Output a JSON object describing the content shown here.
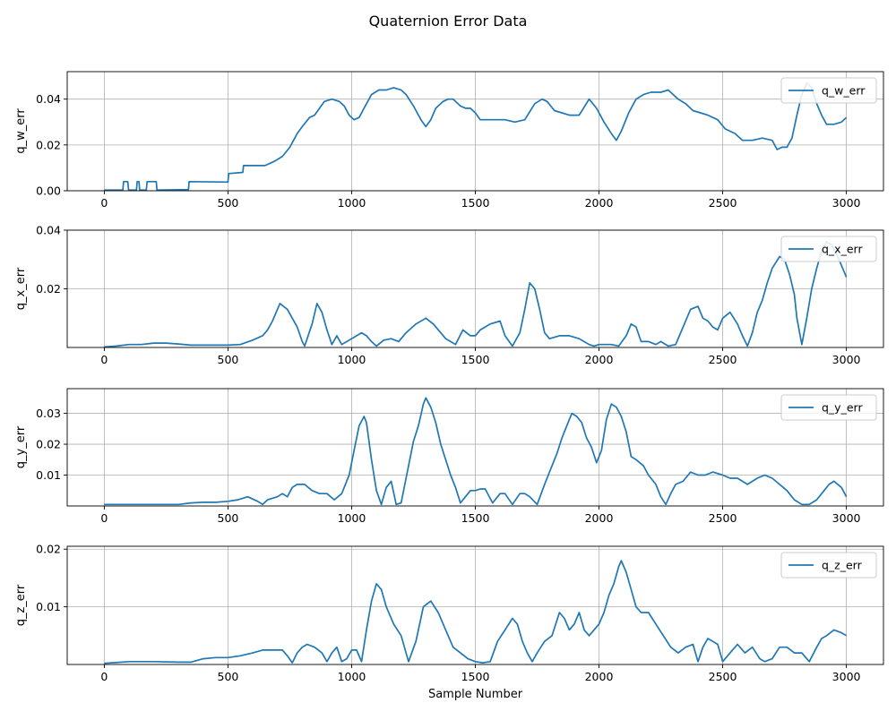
{
  "figure": {
    "title": "Quaternion Error Data",
    "xlabel": "Sample Number",
    "line_color": "#1f77b4",
    "grid_color": "#b0b0b0"
  },
  "chart_data": [
    {
      "type": "line",
      "ylabel": "q_w_err",
      "xlim": [
        -150,
        3150
      ],
      "ylim": [
        0,
        0.052
      ],
      "x_ticks": [
        0,
        500,
        1000,
        1500,
        2000,
        2500,
        3000
      ],
      "y_ticks": [
        0.0,
        0.02,
        0.04
      ],
      "y_tick_labels": [
        "0.00",
        "0.02",
        "0.04"
      ],
      "grid": true,
      "legend": "upper right",
      "series": [
        {
          "name": "q_w_err",
          "x": [
            0,
            75,
            78,
            95,
            98,
            130,
            133,
            140,
            143,
            170,
            173,
            210,
            213,
            340,
            343,
            500,
            503,
            560,
            563,
            650,
            690,
            720,
            750,
            780,
            800,
            830,
            850,
            870,
            890,
            920,
            950,
            970,
            990,
            1010,
            1030,
            1050,
            1080,
            1110,
            1140,
            1170,
            1200,
            1220,
            1250,
            1280,
            1300,
            1320,
            1340,
            1370,
            1390,
            1410,
            1440,
            1460,
            1480,
            1500,
            1520,
            1550,
            1580,
            1620,
            1660,
            1700,
            1740,
            1770,
            1790,
            1820,
            1850,
            1880,
            1920,
            1960,
            1990,
            2020,
            2050,
            2070,
            2090,
            2120,
            2150,
            2180,
            2210,
            2250,
            2280,
            2320,
            2350,
            2380,
            2410,
            2440,
            2480,
            2510,
            2550,
            2580,
            2620,
            2660,
            2700,
            2720,
            2740,
            2760,
            2780,
            2800,
            2820,
            2840,
            2860,
            2880,
            2900,
            2920,
            2950,
            2980,
            3000
          ],
          "y": [
            0.0003,
            0.0003,
            0.004,
            0.004,
            0.0003,
            0.0003,
            0.004,
            0.004,
            0.0003,
            0.0003,
            0.004,
            0.004,
            0.0003,
            0.0005,
            0.004,
            0.0038,
            0.0075,
            0.008,
            0.011,
            0.011,
            0.013,
            0.015,
            0.019,
            0.025,
            0.028,
            0.032,
            0.033,
            0.036,
            0.039,
            0.04,
            0.039,
            0.037,
            0.033,
            0.031,
            0.032,
            0.036,
            0.042,
            0.044,
            0.044,
            0.045,
            0.044,
            0.042,
            0.037,
            0.031,
            0.028,
            0.031,
            0.036,
            0.039,
            0.04,
            0.04,
            0.037,
            0.036,
            0.036,
            0.034,
            0.031,
            0.031,
            0.031,
            0.031,
            0.03,
            0.031,
            0.038,
            0.04,
            0.039,
            0.035,
            0.034,
            0.033,
            0.033,
            0.04,
            0.036,
            0.03,
            0.025,
            0.022,
            0.026,
            0.034,
            0.04,
            0.042,
            0.043,
            0.043,
            0.044,
            0.04,
            0.038,
            0.035,
            0.034,
            0.033,
            0.031,
            0.027,
            0.025,
            0.022,
            0.022,
            0.023,
            0.022,
            0.018,
            0.019,
            0.019,
            0.023,
            0.033,
            0.042,
            0.047,
            0.045,
            0.038,
            0.033,
            0.029,
            0.029,
            0.03,
            0.032
          ]
        }
      ]
    },
    {
      "type": "line",
      "ylabel": "q_x_err",
      "xlim": [
        -150,
        3150
      ],
      "ylim": [
        0,
        0.04
      ],
      "x_ticks": [
        0,
        500,
        1000,
        1500,
        2000,
        2500,
        3000
      ],
      "y_ticks": [
        0.02,
        0.04
      ],
      "y_tick_labels": [
        "0.02",
        "0.04"
      ],
      "grid": true,
      "legend": "upper right",
      "series": [
        {
          "name": "q_x_err",
          "x": [
            0,
            50,
            100,
            150,
            200,
            250,
            300,
            350,
            400,
            450,
            500,
            550,
            600,
            640,
            660,
            680,
            710,
            740,
            760,
            780,
            800,
            810,
            820,
            840,
            860,
            880,
            900,
            920,
            940,
            960,
            1000,
            1040,
            1060,
            1080,
            1100,
            1130,
            1160,
            1190,
            1220,
            1260,
            1300,
            1330,
            1360,
            1380,
            1400,
            1420,
            1450,
            1480,
            1500,
            1520,
            1560,
            1600,
            1620,
            1650,
            1680,
            1700,
            1720,
            1740,
            1760,
            1780,
            1800,
            1840,
            1880,
            1920,
            1960,
            1980,
            2000,
            2020,
            2050,
            2080,
            2110,
            2130,
            2150,
            2170,
            2200,
            2230,
            2250,
            2280,
            2310,
            2340,
            2370,
            2400,
            2420,
            2440,
            2460,
            2480,
            2500,
            2530,
            2560,
            2580,
            2600,
            2620,
            2640,
            2660,
            2680,
            2700,
            2730,
            2750,
            2770,
            2790,
            2800,
            2820,
            2840,
            2860,
            2880,
            2900,
            2920,
            2940,
            2960,
            2980,
            3000
          ],
          "y": [
            0.0002,
            0.0005,
            0.001,
            0.001,
            0.0015,
            0.0015,
            0.0012,
            0.0008,
            0.0008,
            0.0008,
            0.0008,
            0.001,
            0.0025,
            0.004,
            0.006,
            0.009,
            0.015,
            0.013,
            0.01,
            0.007,
            0.002,
            0.0005,
            0.003,
            0.008,
            0.015,
            0.012,
            0.006,
            0.001,
            0.004,
            0.001,
            0.003,
            0.005,
            0.004,
            0.002,
            0.0005,
            0.0025,
            0.003,
            0.002,
            0.005,
            0.008,
            0.01,
            0.008,
            0.005,
            0.003,
            0.002,
            0.001,
            0.006,
            0.004,
            0.004,
            0.006,
            0.008,
            0.009,
            0.004,
            0.0005,
            0.005,
            0.013,
            0.022,
            0.02,
            0.013,
            0.005,
            0.003,
            0.004,
            0.004,
            0.003,
            0.001,
            0.0005,
            0.001,
            0.001,
            0.001,
            0.0005,
            0.004,
            0.008,
            0.007,
            0.002,
            0.002,
            0.001,
            0.002,
            0.0005,
            0.001,
            0.007,
            0.013,
            0.014,
            0.01,
            0.009,
            0.007,
            0.006,
            0.01,
            0.012,
            0.008,
            0.004,
            0.0005,
            0.005,
            0.012,
            0.016,
            0.022,
            0.027,
            0.031,
            0.03,
            0.025,
            0.018,
            0.01,
            0.001,
            0.01,
            0.02,
            0.027,
            0.033,
            0.036,
            0.035,
            0.032,
            0.028,
            0.024
          ]
        }
      ]
    },
    {
      "type": "line",
      "ylabel": "q_y_err",
      "xlim": [
        -150,
        3150
      ],
      "ylim": [
        0,
        0.038
      ],
      "x_ticks": [
        0,
        500,
        1000,
        1500,
        2000,
        2500,
        3000
      ],
      "y_ticks": [
        0.01,
        0.02,
        0.03
      ],
      "y_tick_labels": [
        "0.01",
        "0.02",
        "0.03"
      ],
      "grid": true,
      "legend": "upper right",
      "series": [
        {
          "name": "q_y_err",
          "x": [
            0,
            100,
            200,
            300,
            350,
            400,
            450,
            500,
            540,
            580,
            620,
            640,
            660,
            700,
            720,
            740,
            760,
            780,
            810,
            840,
            870,
            900,
            930,
            960,
            990,
            1010,
            1030,
            1050,
            1060,
            1080,
            1100,
            1120,
            1140,
            1160,
            1180,
            1200,
            1220,
            1250,
            1270,
            1290,
            1300,
            1320,
            1340,
            1360,
            1380,
            1400,
            1420,
            1440,
            1460,
            1480,
            1500,
            1520,
            1540,
            1570,
            1600,
            1620,
            1650,
            1680,
            1700,
            1720,
            1750,
            1780,
            1800,
            1830,
            1850,
            1870,
            1890,
            1910,
            1930,
            1950,
            1970,
            1990,
            2010,
            2030,
            2050,
            2070,
            2090,
            2110,
            2130,
            2150,
            2180,
            2200,
            2230,
            2250,
            2270,
            2290,
            2310,
            2340,
            2370,
            2400,
            2430,
            2460,
            2500,
            2530,
            2560,
            2600,
            2640,
            2670,
            2700,
            2730,
            2760,
            2790,
            2820,
            2850,
            2880,
            2910,
            2930,
            2950,
            2980,
            3000
          ],
          "y": [
            0.0005,
            0.0005,
            0.0005,
            0.0005,
            0.001,
            0.0012,
            0.0012,
            0.0015,
            0.002,
            0.003,
            0.0015,
            0.0005,
            0.002,
            0.003,
            0.004,
            0.003,
            0.006,
            0.007,
            0.007,
            0.005,
            0.004,
            0.004,
            0.002,
            0.004,
            0.01,
            0.018,
            0.026,
            0.029,
            0.027,
            0.015,
            0.005,
            0.0005,
            0.006,
            0.008,
            0.0005,
            0.001,
            0.009,
            0.021,
            0.026,
            0.033,
            0.035,
            0.032,
            0.027,
            0.02,
            0.015,
            0.01,
            0.006,
            0.001,
            0.003,
            0.005,
            0.005,
            0.0055,
            0.0055,
            0.001,
            0.004,
            0.004,
            0.0005,
            0.004,
            0.004,
            0.003,
            0.0005,
            0.007,
            0.011,
            0.017,
            0.022,
            0.026,
            0.03,
            0.029,
            0.027,
            0.022,
            0.019,
            0.014,
            0.018,
            0.028,
            0.033,
            0.032,
            0.029,
            0.024,
            0.016,
            0.015,
            0.013,
            0.01,
            0.007,
            0.003,
            0.0005,
            0.004,
            0.007,
            0.008,
            0.011,
            0.01,
            0.01,
            0.011,
            0.01,
            0.009,
            0.009,
            0.007,
            0.009,
            0.01,
            0.009,
            0.007,
            0.005,
            0.002,
            0.0005,
            0.0005,
            0.002,
            0.005,
            0.007,
            0.008,
            0.006,
            0.003
          ]
        }
      ]
    },
    {
      "type": "line",
      "ylabel": "q_z_err",
      "xlim": [
        -150,
        3150
      ],
      "ylim": [
        0,
        0.0205
      ],
      "x_ticks": [
        0,
        500,
        1000,
        1500,
        2000,
        2500,
        3000
      ],
      "y_ticks": [
        0.01,
        0.02
      ],
      "y_tick_labels": [
        "0.01",
        "0.02"
      ],
      "grid": true,
      "legend": "upper right",
      "series": [
        {
          "name": "q_z_err",
          "x": [
            0,
            100,
            200,
            300,
            350,
            400,
            450,
            500,
            550,
            600,
            640,
            680,
            720,
            740,
            760,
            780,
            800,
            820,
            850,
            880,
            900,
            920,
            940,
            960,
            980,
            1000,
            1020,
            1040,
            1060,
            1080,
            1100,
            1120,
            1140,
            1170,
            1200,
            1230,
            1260,
            1290,
            1320,
            1350,
            1380,
            1410,
            1440,
            1470,
            1500,
            1530,
            1560,
            1590,
            1620,
            1650,
            1670,
            1690,
            1710,
            1730,
            1750,
            1780,
            1810,
            1840,
            1860,
            1880,
            1900,
            1920,
            1940,
            1960,
            1980,
            2000,
            2020,
            2040,
            2060,
            2080,
            2090,
            2110,
            2130,
            2150,
            2170,
            2200,
            2230,
            2260,
            2290,
            2320,
            2350,
            2380,
            2400,
            2420,
            2440,
            2460,
            2480,
            2500,
            2530,
            2560,
            2590,
            2620,
            2650,
            2670,
            2700,
            2730,
            2760,
            2790,
            2820,
            2850,
            2880,
            2900,
            2920,
            2950,
            2980,
            3000
          ],
          "y": [
            0.0002,
            0.0005,
            0.0005,
            0.0004,
            0.0004,
            0.001,
            0.0012,
            0.0012,
            0.0015,
            0.002,
            0.0025,
            0.0025,
            0.0025,
            0.0015,
            0.0003,
            0.002,
            0.003,
            0.0035,
            0.003,
            0.002,
            0.0005,
            0.002,
            0.003,
            0.0005,
            0.001,
            0.0025,
            0.0025,
            0.0005,
            0.006,
            0.011,
            0.014,
            0.013,
            0.01,
            0.007,
            0.005,
            0.0005,
            0.004,
            0.01,
            0.011,
            0.009,
            0.006,
            0.003,
            0.002,
            0.001,
            0.0005,
            0.0003,
            0.0005,
            0.004,
            0.006,
            0.008,
            0.007,
            0.004,
            0.002,
            0.0005,
            0.002,
            0.004,
            0.005,
            0.009,
            0.008,
            0.006,
            0.007,
            0.009,
            0.006,
            0.005,
            0.006,
            0.007,
            0.009,
            0.012,
            0.014,
            0.017,
            0.018,
            0.016,
            0.013,
            0.01,
            0.009,
            0.009,
            0.007,
            0.005,
            0.003,
            0.002,
            0.003,
            0.0035,
            0.0005,
            0.003,
            0.0045,
            0.004,
            0.0035,
            0.0005,
            0.002,
            0.0035,
            0.002,
            0.003,
            0.001,
            0.0005,
            0.001,
            0.003,
            0.003,
            0.002,
            0.002,
            0.0005,
            0.003,
            0.0045,
            0.005,
            0.006,
            0.0055,
            0.005
          ]
        }
      ]
    }
  ]
}
